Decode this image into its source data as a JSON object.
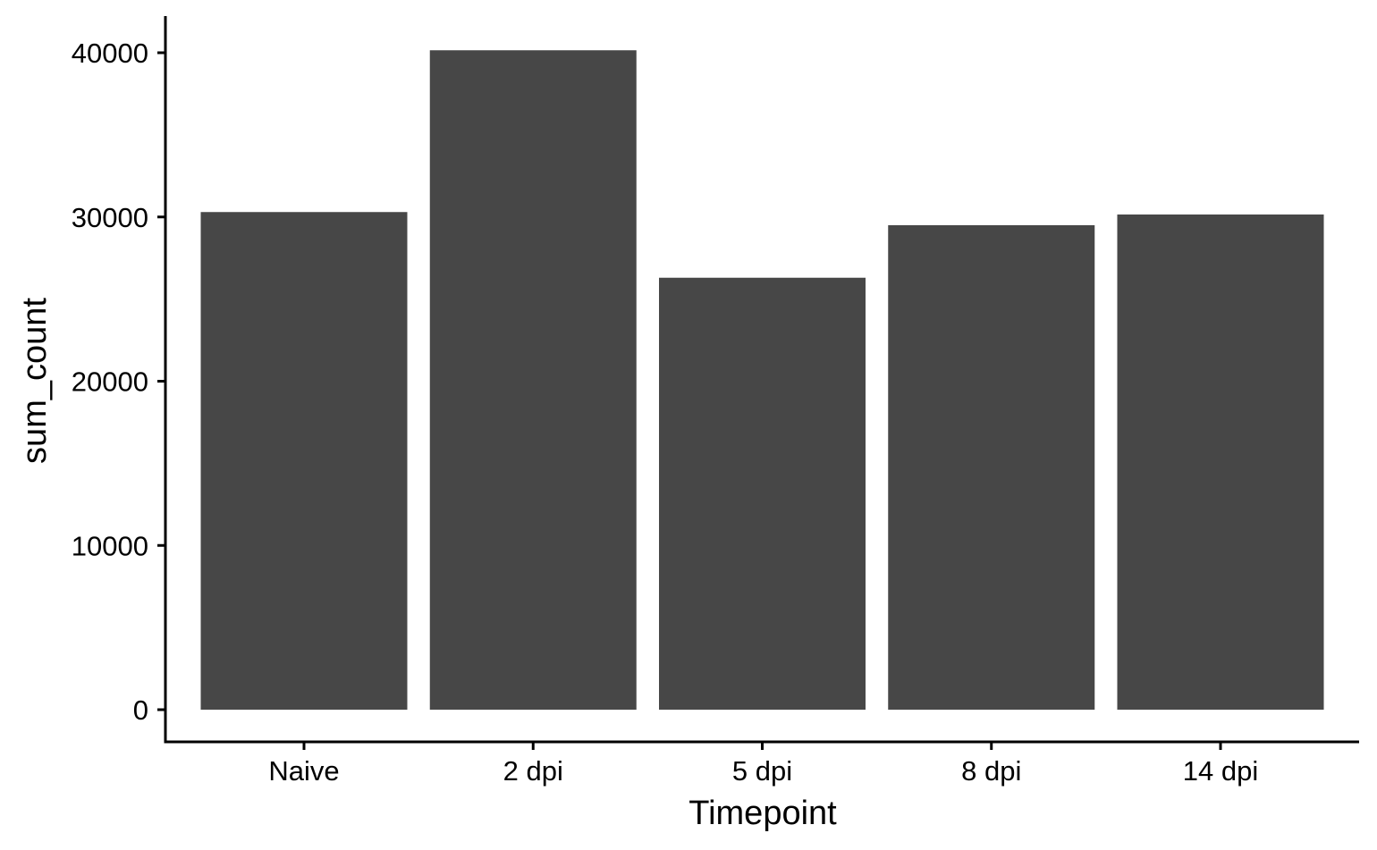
{
  "chart_data": {
    "type": "bar",
    "title": "",
    "xlabel": "Timepoint",
    "ylabel": "sum_count",
    "categories": [
      "Naive",
      "2 dpi",
      "5 dpi",
      "8 dpi",
      "14 dpi"
    ],
    "values": [
      30300,
      40150,
      26300,
      29500,
      30150
    ],
    "ylim": [
      0,
      40000
    ],
    "yticks": [
      0,
      10000,
      20000,
      30000,
      40000
    ],
    "ytick_labels": [
      "0",
      "10000",
      "20000",
      "30000",
      "40000"
    ],
    "grid": false,
    "legend": "none",
    "bar_color": "#474747",
    "axis_color": "#000000"
  }
}
